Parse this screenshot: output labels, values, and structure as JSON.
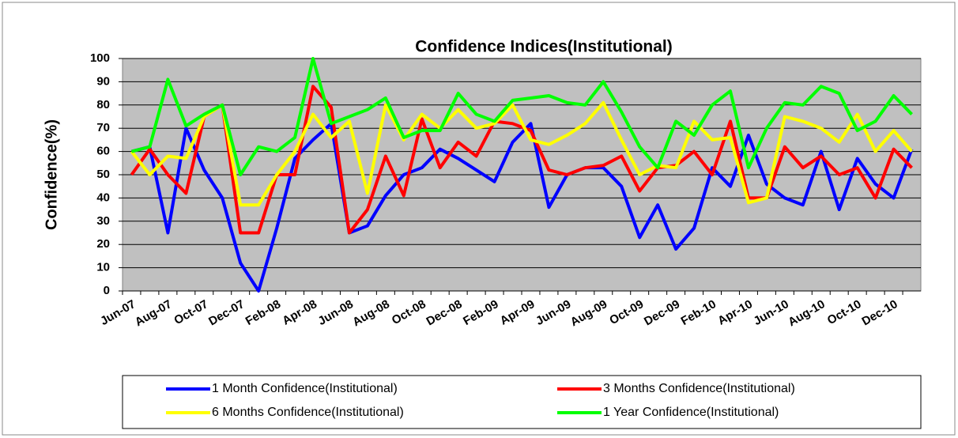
{
  "chart_data": {
    "type": "line",
    "title": "Confidence Indices(Institutional)",
    "y_label": "Confidence(%)",
    "categories": [
      "Jun-07",
      null,
      "Aug-07",
      null,
      "Oct-07",
      null,
      "Dec-07",
      null,
      "Feb-08",
      null,
      "Apr-08",
      null,
      "Jun-08",
      null,
      "Aug-08",
      null,
      "Oct-08",
      null,
      "Dec-08",
      null,
      "Feb-09",
      null,
      "Apr-09",
      null,
      "Jun-09",
      null,
      "Aug-09",
      null,
      "Oct-09",
      null,
      "Dec-09",
      null,
      "Feb-10",
      null,
      "Apr-10",
      null,
      "Jun-10",
      null,
      "Aug-10",
      null,
      "Oct-10",
      null,
      "Dec-10",
      null
    ],
    "series": [
      {
        "name": "1 Month Confidence(Institutional)",
        "color": "#0000ff",
        "values": [
          60,
          62,
          25,
          70,
          52,
          40,
          12,
          0,
          27,
          57,
          65,
          72,
          25,
          28,
          41,
          50,
          53,
          61,
          57,
          52,
          47,
          64,
          72,
          36,
          50,
          53,
          53,
          45,
          23,
          37,
          18,
          27,
          53,
          45,
          67,
          46,
          40,
          37,
          60,
          35,
          57,
          46,
          40,
          61
        ]
      },
      {
        "name": "3 Months Confidence(Institutional)",
        "color": "#ff0000",
        "values": [
          50,
          61,
          50,
          42,
          75,
          80,
          25,
          25,
          50,
          50,
          88,
          79,
          25,
          35,
          58,
          41,
          74,
          53,
          64,
          58,
          73,
          72,
          69,
          52,
          50,
          53,
          54,
          58,
          43,
          53,
          54,
          60,
          50,
          73,
          40,
          40,
          62,
          53,
          58,
          50,
          53,
          40,
          61,
          53
        ]
      },
      {
        "name": "6 Months Confidence(Institutional)",
        "color": "#ffff00",
        "values": [
          60,
          50,
          58,
          57,
          75,
          80,
          37,
          37,
          50,
          60,
          76,
          66,
          73,
          42,
          80,
          65,
          76,
          70,
          78,
          70,
          72,
          80,
          65,
          63,
          67,
          72,
          81,
          65,
          50,
          54,
          53,
          73,
          65,
          66,
          38,
          40,
          75,
          73,
          70,
          64,
          76,
          60,
          69,
          60
        ]
      },
      {
        "name": "1 Year Confidence(Institutional)",
        "color": "#00ff00",
        "values": [
          60,
          62,
          91,
          71,
          76,
          80,
          50,
          62,
          60,
          66,
          100,
          72,
          75,
          78,
          83,
          66,
          69,
          69,
          85,
          76,
          73,
          82,
          83,
          84,
          81,
          80,
          90,
          77,
          62,
          53,
          73,
          67,
          80,
          86,
          53,
          70,
          81,
          80,
          88,
          85,
          69,
          73,
          84,
          76
        ]
      }
    ],
    "ylim": [
      0,
      100
    ],
    "yticks": [
      0,
      10,
      20,
      30,
      40,
      50,
      60,
      70,
      80,
      90,
      100
    ],
    "grid": true,
    "plot_background": "#c0c0c0"
  }
}
